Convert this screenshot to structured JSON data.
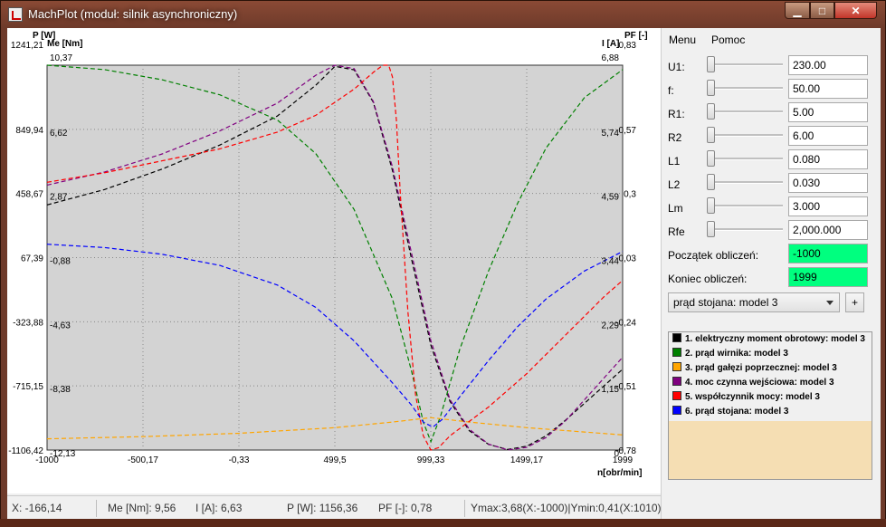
{
  "window": {
    "title": "MachPlot (moduł: silnik asynchroniczny)",
    "controls": {
      "minimize": "▁",
      "maximize": "□",
      "close": "✕"
    }
  },
  "menu": {
    "items": [
      "Menu",
      "Pomoc"
    ]
  },
  "axes": {
    "p_label": "P [W]",
    "me_label": "Me [Nm]",
    "i_label": "I [A]",
    "pf_label": "PF [-]",
    "x_label": "n[obr/min]",
    "p_ticks": [
      "1241,21",
      "849,94",
      "458,67",
      "67,39",
      "-323,88",
      "-715,15",
      "-1106,42"
    ],
    "me_ticks": [
      "10,37",
      "6,62",
      "2,87",
      "-0,88",
      "-4,63",
      "-8,38",
      "-12,13"
    ],
    "i_ticks": [
      "6,88",
      "5,74",
      "4,59",
      "3,44",
      "2,29",
      "1,15",
      "0"
    ],
    "pf_ticks": [
      "0,83",
      "0,57",
      "0,3",
      "0,03",
      "-0,24",
      "-0,51",
      "-0,78"
    ],
    "x_ticks": [
      "-1000",
      "-500,17",
      "-0,33",
      "499,5",
      "999,33",
      "1499,17",
      "1999"
    ]
  },
  "parameters": [
    {
      "label": "U1:",
      "value": "230.00"
    },
    {
      "label": "f:",
      "value": "50.00"
    },
    {
      "label": "R1:",
      "value": "5.00"
    },
    {
      "label": "R2",
      "value": "6.00"
    },
    {
      "label": "L1",
      "value": "0.080"
    },
    {
      "label": "L2",
      "value": "0.030"
    },
    {
      "label": "Lm",
      "value": "3.000"
    },
    {
      "label": "Rfe",
      "value": "2,000.000"
    }
  ],
  "calc": {
    "start_label": "Początek obliczeń:",
    "start_value": "-1000",
    "end_label": "Koniec obliczeń:",
    "end_value": "1999"
  },
  "series_select": {
    "selected": "prąd stojana: model 3",
    "add_button": "+"
  },
  "legend": [
    {
      "label": "1. elektryczny moment obrotowy: model 3",
      "color": "#000000"
    },
    {
      "label": "2. prąd wirnika: model 3",
      "color": "#008000"
    },
    {
      "label": "3. prąd gałęzi poprzecznej: model 3",
      "color": "#ffa500"
    },
    {
      "label": "4. moc czynna wejściowa: model 3",
      "color": "#800080"
    },
    {
      "label": "5. współczynnik mocy: model 3",
      "color": "#ff0000"
    },
    {
      "label": "6. prąd stojana: model 3",
      "color": "#0000ff"
    }
  ],
  "status": {
    "x": "X: -166,14",
    "me": "Me [Nm]: 9,56",
    "i": "I [A]: 6,63",
    "p": "P [W]: 1156,36",
    "pf": "PF [-]: 0,78",
    "yrange": "Ymax:3,68(X:-1000)|Ymin:0,41(X:1010)|M"
  },
  "chart_data": {
    "type": "line",
    "xlabel": "n[obr/min]",
    "xlim": [
      -1000,
      1999
    ],
    "ylim_p": [
      -1106.42,
      1241.21
    ],
    "ylim_me": [
      -12.13,
      10.37
    ],
    "ylim_i": [
      0,
      6.88
    ],
    "ylim_pf": [
      -0.78,
      0.83
    ],
    "grid": true,
    "line_style": "dashed",
    "series": [
      {
        "name": "1. elektryczny moment obrotowy: model 3",
        "color": "#000000",
        "axis": "Me [Nm]",
        "x": [
          -1000,
          -700,
          -400,
          -100,
          200,
          400,
          500,
          600,
          700,
          800,
          900,
          1000,
          1100,
          1200,
          1300,
          1400,
          1500,
          1600,
          1700,
          1800,
          1999
        ],
        "y": [
          2.2,
          3.1,
          4.3,
          5.7,
          7.4,
          9.2,
          10.3,
          10.1,
          8.2,
          4.2,
          -1.0,
          -6.0,
          -9.3,
          -11.0,
          -11.8,
          -12.1,
          -11.9,
          -11.3,
          -10.4,
          -9.4,
          -7.4
        ]
      },
      {
        "name": "2. prąd wirnika: model 3",
        "color": "#008000",
        "axis": "I [A]",
        "x": [
          -1000,
          -700,
          -400,
          -100,
          200,
          400,
          600,
          800,
          900,
          960,
          1000,
          1050,
          1150,
          1300,
          1450,
          1600,
          1800,
          1999
        ],
        "y": [
          6.88,
          6.8,
          6.62,
          6.35,
          5.9,
          5.3,
          4.3,
          2.7,
          1.4,
          0.5,
          0.15,
          0.6,
          1.8,
          3.2,
          4.4,
          5.4,
          6.3,
          6.8
        ]
      },
      {
        "name": "3. prąd gałęzi poprzecznej: model 3",
        "color": "#ffa500",
        "axis": "I [A]",
        "x": [
          -1000,
          -500,
          0,
          500,
          800,
          1000,
          1200,
          1500,
          1999
        ],
        "y": [
          0.2,
          0.24,
          0.3,
          0.4,
          0.5,
          0.58,
          0.5,
          0.4,
          0.27
        ]
      },
      {
        "name": "4. moc czynna wejściowa: model 3",
        "color": "#800080",
        "axis": "P [W]",
        "x": [
          -1000,
          -700,
          -400,
          -100,
          200,
          400,
          500,
          600,
          700,
          800,
          900,
          1000,
          1100,
          1200,
          1300,
          1400,
          1500,
          1600,
          1700,
          1800,
          1999
        ],
        "y": [
          510,
          590,
          700,
          840,
          1010,
          1180,
          1241,
          1220,
          1020,
          620,
          90,
          -440,
          -800,
          -980,
          -1070,
          -1106,
          -1090,
          -1030,
          -930,
          -800,
          -540
        ]
      },
      {
        "name": "5. współczynnik mocy: model 3",
        "color": "#ff0000",
        "axis": "PF [-]",
        "x": [
          -1000,
          -700,
          -400,
          -100,
          200,
          400,
          600,
          700,
          750,
          780,
          800,
          820,
          840,
          880,
          920,
          960,
          1000,
          1040,
          1100,
          1300,
          1500,
          1700,
          1900,
          1999
        ],
        "y": [
          0.34,
          0.38,
          0.43,
          0.48,
          0.55,
          0.62,
          0.73,
          0.8,
          0.83,
          0.83,
          0.78,
          0.6,
          0.3,
          -0.2,
          -0.55,
          -0.72,
          -0.78,
          -0.77,
          -0.72,
          -0.6,
          -0.46,
          -0.3,
          -0.14,
          -0.07
        ]
      },
      {
        "name": "6. prąd stojana: model 3",
        "color": "#0000ff",
        "axis": "I [A]",
        "x": [
          -1000,
          -700,
          -400,
          -100,
          200,
          400,
          600,
          800,
          900,
          960,
          1010,
          1060,
          1150,
          1300,
          1450,
          1600,
          1800,
          1999
        ],
        "y": [
          3.68,
          3.62,
          3.5,
          3.3,
          2.95,
          2.55,
          1.95,
          1.2,
          0.8,
          0.5,
          0.41,
          0.55,
          0.95,
          1.6,
          2.2,
          2.7,
          3.2,
          3.55
        ]
      }
    ]
  }
}
